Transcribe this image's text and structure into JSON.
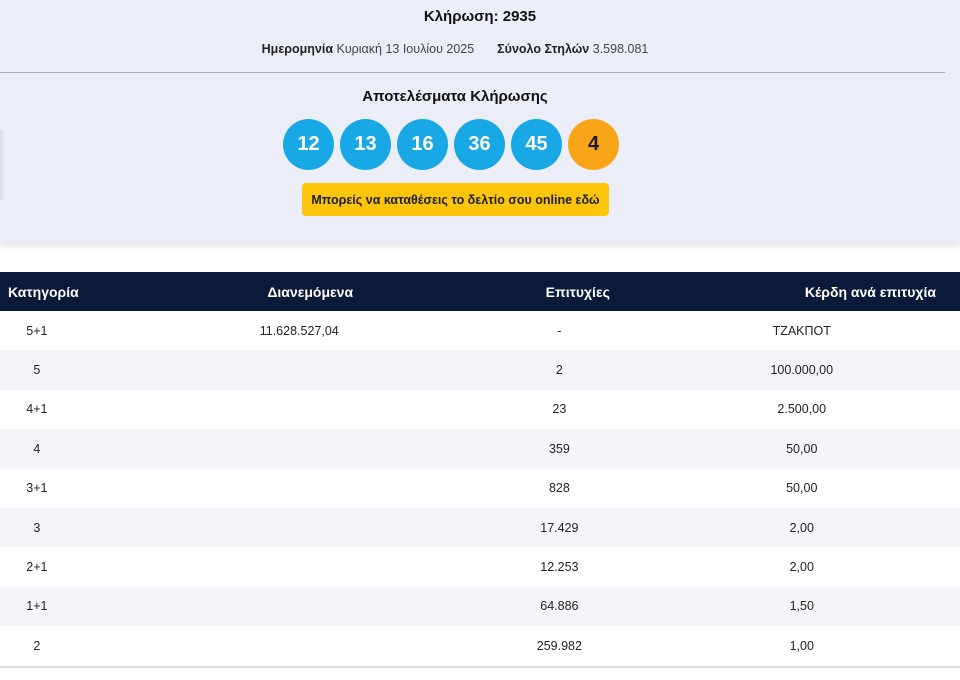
{
  "header": {
    "draw_title": "Κλήρωση: 2935",
    "date_label": "Ημερομηνία",
    "date_value": "Κυριακή 13 Ιουλίου 2025",
    "total_label": "Σύνολο Στηλών",
    "total_value": "3.598.081"
  },
  "results": {
    "title": "Αποτελέσματα Κλήρωσης",
    "main_numbers": [
      "12",
      "13",
      "16",
      "36",
      "45"
    ],
    "bonus_number": "4",
    "online_button_label": "Μπορείς να καταθέσεις το δελτίο σου online εδώ"
  },
  "colors": {
    "main_ball": "#18a8e6",
    "bonus_ball": "#f7a416",
    "button": "#fcc50c",
    "table_header": "#0c1a3a"
  },
  "table": {
    "headers": [
      "Κατηγορία",
      "Διανεμόμενα",
      "Επιτυχίες",
      "Κέρδη ανά επιτυχία"
    ],
    "rows": [
      {
        "category": "5+1",
        "distributed": "11.628.527,04",
        "winners": "-",
        "prize": "ΤΖΑΚΠΟΤ"
      },
      {
        "category": "5",
        "distributed": "",
        "winners": "2",
        "prize": "100.000,00"
      },
      {
        "category": "4+1",
        "distributed": "",
        "winners": "23",
        "prize": "2.500,00"
      },
      {
        "category": "4",
        "distributed": "",
        "winners": "359",
        "prize": "50,00"
      },
      {
        "category": "3+1",
        "distributed": "",
        "winners": "828",
        "prize": "50,00"
      },
      {
        "category": "3",
        "distributed": "",
        "winners": "17.429",
        "prize": "2,00"
      },
      {
        "category": "2+1",
        "distributed": "",
        "winners": "12.253",
        "prize": "2,00"
      },
      {
        "category": "1+1",
        "distributed": "",
        "winners": "64.886",
        "prize": "1,50"
      },
      {
        "category": "2",
        "distributed": "",
        "winners": "259.982",
        "prize": "1,00"
      }
    ]
  }
}
